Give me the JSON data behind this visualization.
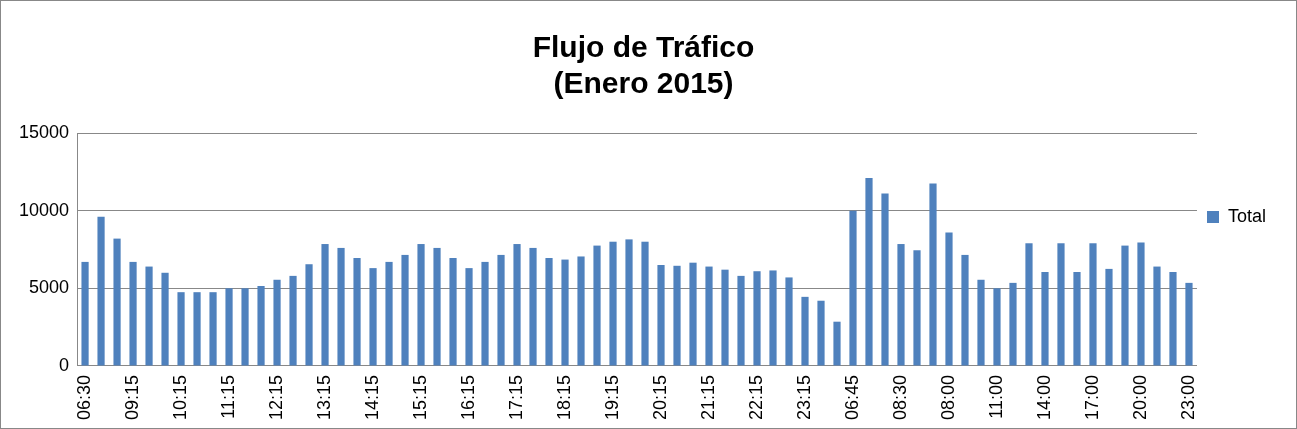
{
  "chart_data": {
    "type": "bar",
    "title": "Flujo de Tráfico\n(Enero 2015)",
    "categories": [
      "06:30",
      null,
      null,
      "09:15",
      null,
      null,
      "10:15",
      null,
      null,
      "11:15",
      null,
      null,
      "12:15",
      null,
      null,
      "13:15",
      null,
      null,
      "14:15",
      null,
      null,
      "15:15",
      null,
      null,
      "16:15",
      null,
      null,
      "17:15",
      null,
      null,
      "18:15",
      null,
      null,
      "19:15",
      null,
      null,
      "20:15",
      null,
      null,
      "21:15",
      null,
      null,
      "22:15",
      null,
      null,
      "23:15",
      null,
      null,
      "06:45",
      null,
      null,
      "08:30",
      null,
      null,
      "08:00",
      null,
      null,
      "11:00",
      null,
      null,
      "14:00",
      null,
      null,
      "17:00",
      null,
      null,
      "20:00",
      null,
      null,
      "23:00"
    ],
    "series": [
      {
        "name": "Total",
        "color": "#4f81bd",
        "values": [
          6700,
          9600,
          8200,
          6700,
          6400,
          6000,
          4750,
          4750,
          4750,
          5000,
          5000,
          5150,
          5550,
          5800,
          6550,
          7850,
          7600,
          6950,
          6300,
          6700,
          7150,
          7850,
          7600,
          6950,
          6300,
          6700,
          7150,
          7850,
          7600,
          6950,
          6850,
          7050,
          7750,
          8000,
          8150,
          8000,
          6500,
          6450,
          6650,
          6400,
          6200,
          5800,
          6100,
          6150,
          5700,
          4450,
          4200,
          2850,
          10000,
          12100,
          11100,
          7850,
          7450,
          11750,
          8600,
          7150,
          5550,
          5000,
          5350,
          7900,
          6050,
          7900,
          6050,
          7900,
          6250,
          7750,
          7950,
          6400,
          6050,
          5350
        ]
      }
    ],
    "ylim": [
      0,
      15000
    ],
    "yticks": [
      0,
      5000,
      10000,
      15000
    ],
    "grid": "y",
    "legend": "right"
  }
}
